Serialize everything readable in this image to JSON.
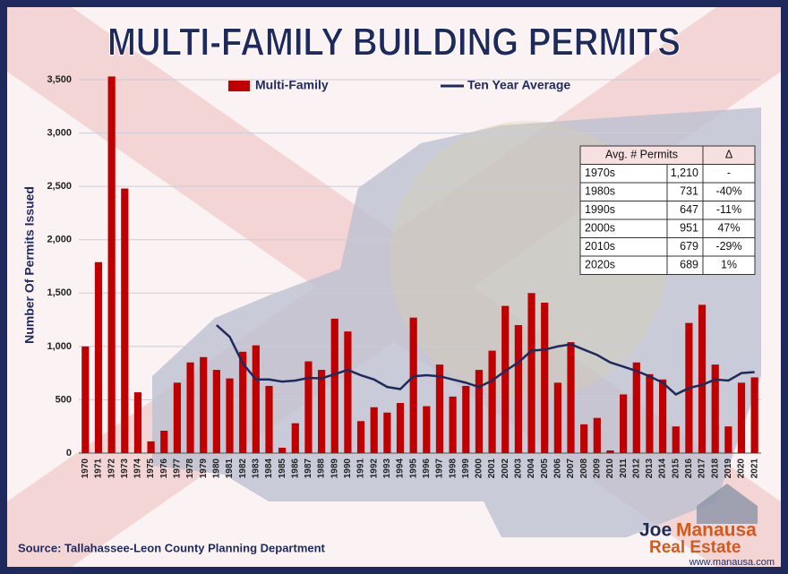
{
  "chart_data": {
    "type": "bar",
    "title": "MULTI-FAMILY BUILDING PERMITS",
    "y_label": "Number Of Permits Issued",
    "categories": [
      "1970",
      "1971",
      "1972",
      "1973",
      "1974",
      "1975",
      "1976",
      "1977",
      "1978",
      "1979",
      "1980",
      "1981",
      "1982",
      "1983",
      "1984",
      "1985",
      "1986",
      "1987",
      "1988",
      "1989",
      "1990",
      "1991",
      "1992",
      "1993",
      "1994",
      "1995",
      "1996",
      "1997",
      "1998",
      "1999",
      "2000",
      "2001",
      "2002",
      "2003",
      "2004",
      "2005",
      "2006",
      "2007",
      "2008",
      "2009",
      "2010",
      "2011",
      "2012",
      "2013",
      "2014",
      "2015",
      "2016",
      "2017",
      "2018",
      "2019",
      "2020",
      "2021"
    ],
    "series": [
      {
        "name": "Multi-Family",
        "type": "bar",
        "color": "#c00000",
        "values": [
          1000,
          1790,
          3530,
          2480,
          570,
          110,
          210,
          660,
          850,
          900,
          780,
          700,
          950,
          1010,
          630,
          50,
          280,
          860,
          780,
          1260,
          1140,
          300,
          430,
          380,
          470,
          1270,
          440,
          830,
          530,
          630,
          780,
          960,
          1380,
          1200,
          1500,
          1410,
          660,
          1040,
          270,
          330,
          25,
          550,
          850,
          740,
          690,
          250,
          1220,
          1390,
          830,
          250,
          660,
          710
        ]
      },
      {
        "name": "Ten Year Average",
        "type": "line",
        "color": "#1f2a5c",
        "values": [
          null,
          null,
          null,
          null,
          null,
          null,
          null,
          null,
          null,
          null,
          1200,
          1090,
          840,
          690,
          690,
          670,
          680,
          705,
          700,
          740,
          780,
          730,
          690,
          620,
          600,
          720,
          730,
          720,
          690,
          660,
          620,
          680,
          770,
          850,
          960,
          970,
          1000,
          1020,
          970,
          920,
          850,
          810,
          770,
          720,
          660,
          550,
          610,
          640,
          690,
          680,
          750,
          760
        ]
      }
    ],
    "ylim": [
      0,
      3500
    ],
    "yticks": [
      0,
      500,
      {
        "value": 1000,
        "label": "1,000"
      },
      {
        "value": 1500,
        "label": "1,500"
      },
      {
        "value": 2000,
        "label": "2,000"
      },
      {
        "value": 2500,
        "label": "2,500"
      },
      {
        "value": 3000,
        "label": "3,000"
      },
      {
        "value": 3500,
        "label": "3,500"
      }
    ],
    "grid": true,
    "legend": "top"
  },
  "table": {
    "header": [
      "Avg. # Permits",
      "Δ"
    ],
    "rows": [
      [
        "1970s",
        "1,210",
        "-"
      ],
      [
        "1980s",
        "731",
        "-40%"
      ],
      [
        "1990s",
        "647",
        "-11%"
      ],
      [
        "2000s",
        "951",
        "47%"
      ],
      [
        "2010s",
        "679",
        "-29%"
      ],
      [
        "2020s",
        "689",
        "1%"
      ]
    ]
  },
  "source": "Source: Tallahassee-Leon County Planning Department",
  "logo": {
    "name_a": "Joe",
    "name_b": "Manausa",
    "line2": "Real Estate",
    "url": "www.manausa.com"
  }
}
